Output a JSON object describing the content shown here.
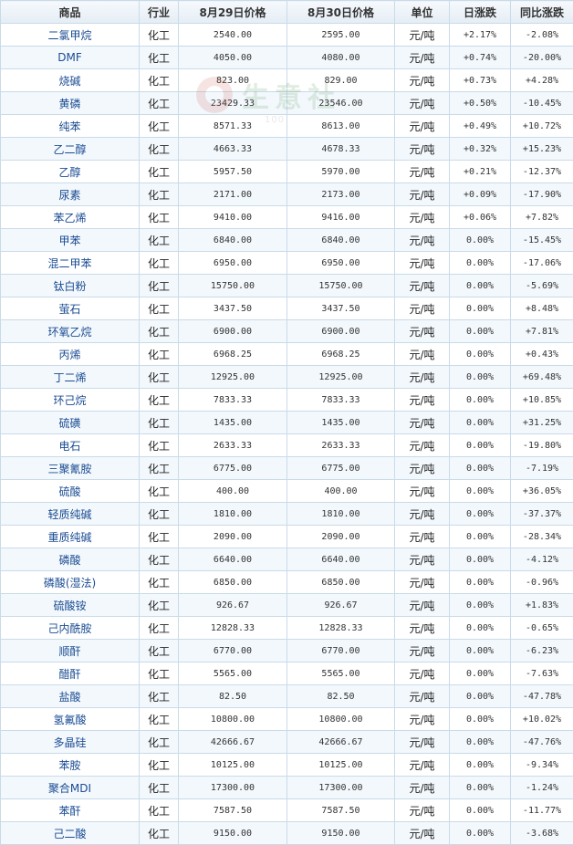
{
  "headers": [
    "商品",
    "行业",
    "8月29日价格",
    "8月30日价格",
    "单位",
    "日涨跌",
    "同比涨跌"
  ],
  "watermark": {
    "text": "生意社",
    "sub": "100"
  },
  "rows": [
    {
      "name": "二氯甲烷",
      "industry": "化工",
      "p1": "2540.00",
      "p2": "2595.00",
      "unit": "元/吨",
      "day": "+2.17%",
      "yoy": "-2.08%"
    },
    {
      "name": "DMF",
      "industry": "化工",
      "p1": "4050.00",
      "p2": "4080.00",
      "unit": "元/吨",
      "day": "+0.74%",
      "yoy": "-20.00%"
    },
    {
      "name": "烧碱",
      "industry": "化工",
      "p1": "823.00",
      "p2": "829.00",
      "unit": "元/吨",
      "day": "+0.73%",
      "yoy": "+4.28%"
    },
    {
      "name": "黄磷",
      "industry": "化工",
      "p1": "23429.33",
      "p2": "23546.00",
      "unit": "元/吨",
      "day": "+0.50%",
      "yoy": "-10.45%"
    },
    {
      "name": "纯苯",
      "industry": "化工",
      "p1": "8571.33",
      "p2": "8613.00",
      "unit": "元/吨",
      "day": "+0.49%",
      "yoy": "+10.72%"
    },
    {
      "name": "乙二醇",
      "industry": "化工",
      "p1": "4663.33",
      "p2": "4678.33",
      "unit": "元/吨",
      "day": "+0.32%",
      "yoy": "+15.23%"
    },
    {
      "name": "乙醇",
      "industry": "化工",
      "p1": "5957.50",
      "p2": "5970.00",
      "unit": "元/吨",
      "day": "+0.21%",
      "yoy": "-12.37%"
    },
    {
      "name": "尿素",
      "industry": "化工",
      "p1": "2171.00",
      "p2": "2173.00",
      "unit": "元/吨",
      "day": "+0.09%",
      "yoy": "-17.90%"
    },
    {
      "name": "苯乙烯",
      "industry": "化工",
      "p1": "9410.00",
      "p2": "9416.00",
      "unit": "元/吨",
      "day": "+0.06%",
      "yoy": "+7.82%"
    },
    {
      "name": "甲苯",
      "industry": "化工",
      "p1": "6840.00",
      "p2": "6840.00",
      "unit": "元/吨",
      "day": "0.00%",
      "yoy": "-15.45%"
    },
    {
      "name": "混二甲苯",
      "industry": "化工",
      "p1": "6950.00",
      "p2": "6950.00",
      "unit": "元/吨",
      "day": "0.00%",
      "yoy": "-17.06%"
    },
    {
      "name": "钛白粉",
      "industry": "化工",
      "p1": "15750.00",
      "p2": "15750.00",
      "unit": "元/吨",
      "day": "0.00%",
      "yoy": "-5.69%"
    },
    {
      "name": "萤石",
      "industry": "化工",
      "p1": "3437.50",
      "p2": "3437.50",
      "unit": "元/吨",
      "day": "0.00%",
      "yoy": "+8.48%"
    },
    {
      "name": "环氧乙烷",
      "industry": "化工",
      "p1": "6900.00",
      "p2": "6900.00",
      "unit": "元/吨",
      "day": "0.00%",
      "yoy": "+7.81%"
    },
    {
      "name": "丙烯",
      "industry": "化工",
      "p1": "6968.25",
      "p2": "6968.25",
      "unit": "元/吨",
      "day": "0.00%",
      "yoy": "+0.43%"
    },
    {
      "name": "丁二烯",
      "industry": "化工",
      "p1": "12925.00",
      "p2": "12925.00",
      "unit": "元/吨",
      "day": "0.00%",
      "yoy": "+69.48%"
    },
    {
      "name": "环己烷",
      "industry": "化工",
      "p1": "7833.33",
      "p2": "7833.33",
      "unit": "元/吨",
      "day": "0.00%",
      "yoy": "+10.85%"
    },
    {
      "name": "硫磺",
      "industry": "化工",
      "p1": "1435.00",
      "p2": "1435.00",
      "unit": "元/吨",
      "day": "0.00%",
      "yoy": "+31.25%"
    },
    {
      "name": "电石",
      "industry": "化工",
      "p1": "2633.33",
      "p2": "2633.33",
      "unit": "元/吨",
      "day": "0.00%",
      "yoy": "-19.80%"
    },
    {
      "name": "三聚氰胺",
      "industry": "化工",
      "p1": "6775.00",
      "p2": "6775.00",
      "unit": "元/吨",
      "day": "0.00%",
      "yoy": "-7.19%"
    },
    {
      "name": "硫酸",
      "industry": "化工",
      "p1": "400.00",
      "p2": "400.00",
      "unit": "元/吨",
      "day": "0.00%",
      "yoy": "+36.05%"
    },
    {
      "name": "轻质纯碱",
      "industry": "化工",
      "p1": "1810.00",
      "p2": "1810.00",
      "unit": "元/吨",
      "day": "0.00%",
      "yoy": "-37.37%"
    },
    {
      "name": "重质纯碱",
      "industry": "化工",
      "p1": "2090.00",
      "p2": "2090.00",
      "unit": "元/吨",
      "day": "0.00%",
      "yoy": "-28.34%"
    },
    {
      "name": "磷酸",
      "industry": "化工",
      "p1": "6640.00",
      "p2": "6640.00",
      "unit": "元/吨",
      "day": "0.00%",
      "yoy": "-4.12%"
    },
    {
      "name": "磷酸(湿法)",
      "industry": "化工",
      "p1": "6850.00",
      "p2": "6850.00",
      "unit": "元/吨",
      "day": "0.00%",
      "yoy": "-0.96%"
    },
    {
      "name": "硫酸铵",
      "industry": "化工",
      "p1": "926.67",
      "p2": "926.67",
      "unit": "元/吨",
      "day": "0.00%",
      "yoy": "+1.83%"
    },
    {
      "name": "己内酰胺",
      "industry": "化工",
      "p1": "12828.33",
      "p2": "12828.33",
      "unit": "元/吨",
      "day": "0.00%",
      "yoy": "-0.65%"
    },
    {
      "name": "顺酐",
      "industry": "化工",
      "p1": "6770.00",
      "p2": "6770.00",
      "unit": "元/吨",
      "day": "0.00%",
      "yoy": "-6.23%"
    },
    {
      "name": "醋酐",
      "industry": "化工",
      "p1": "5565.00",
      "p2": "5565.00",
      "unit": "元/吨",
      "day": "0.00%",
      "yoy": "-7.63%"
    },
    {
      "name": "盐酸",
      "industry": "化工",
      "p1": "82.50",
      "p2": "82.50",
      "unit": "元/吨",
      "day": "0.00%",
      "yoy": "-47.78%"
    },
    {
      "name": "氢氟酸",
      "industry": "化工",
      "p1": "10800.00",
      "p2": "10800.00",
      "unit": "元/吨",
      "day": "0.00%",
      "yoy": "+10.02%"
    },
    {
      "name": "多晶硅",
      "industry": "化工",
      "p1": "42666.67",
      "p2": "42666.67",
      "unit": "元/吨",
      "day": "0.00%",
      "yoy": "-47.76%"
    },
    {
      "name": "苯胺",
      "industry": "化工",
      "p1": "10125.00",
      "p2": "10125.00",
      "unit": "元/吨",
      "day": "0.00%",
      "yoy": "-9.34%"
    },
    {
      "name": "聚合MDI",
      "industry": "化工",
      "p1": "17300.00",
      "p2": "17300.00",
      "unit": "元/吨",
      "day": "0.00%",
      "yoy": "-1.24%"
    },
    {
      "name": "苯酐",
      "industry": "化工",
      "p1": "7587.50",
      "p2": "7587.50",
      "unit": "元/吨",
      "day": "0.00%",
      "yoy": "-11.77%"
    },
    {
      "name": "己二酸",
      "industry": "化工",
      "p1": "9150.00",
      "p2": "9150.00",
      "unit": "元/吨",
      "day": "0.00%",
      "yoy": "-3.68%"
    }
  ]
}
